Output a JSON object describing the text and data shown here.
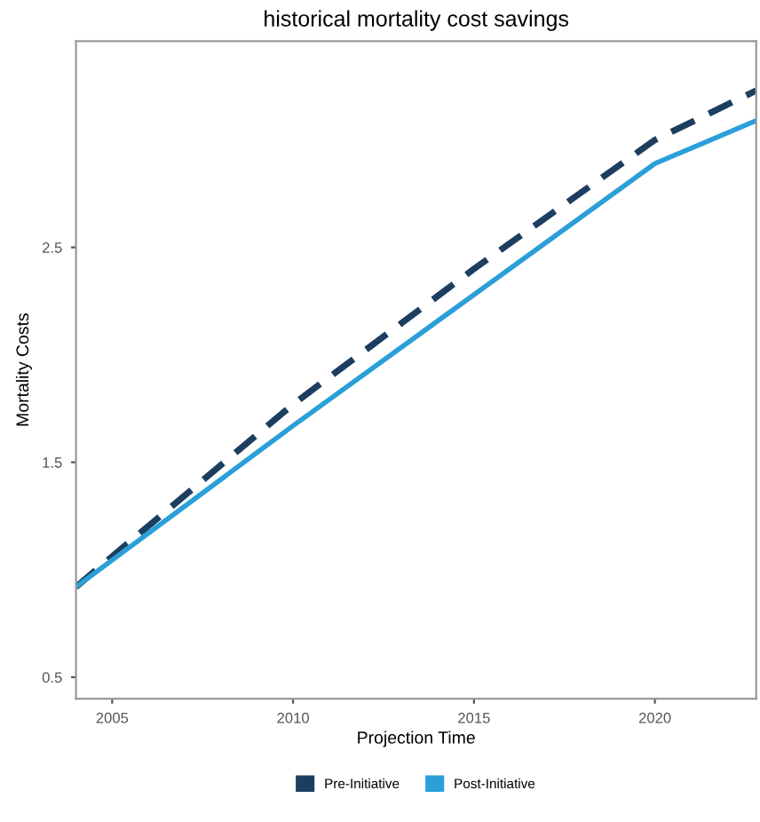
{
  "chart_data": {
    "type": "line",
    "title": "historical mortality cost savings",
    "xlabel": "Projection Time",
    "ylabel": "Mortality Costs",
    "xlim": [
      2004,
      2022.8
    ],
    "xticks": [
      2005,
      2010,
      2015,
      2020
    ],
    "ylim": [
      0.4,
      3.46
    ],
    "yticks": [
      0.5,
      1.5,
      2.5
    ],
    "grid": false,
    "legend": "bottom",
    "series": [
      {
        "name": "Pre-Initiative",
        "color": "#1c3f60",
        "line_style": "dashed",
        "x": [
          2004,
          2010,
          2015,
          2020,
          2022.8
        ],
        "values": [
          0.92,
          1.77,
          2.4,
          3.0,
          3.23
        ]
      },
      {
        "name": "Post-Initiative",
        "color": "#2a9fd8",
        "line_style": "solid",
        "x": [
          2004,
          2010,
          2015,
          2020,
          2022.8
        ],
        "values": [
          0.92,
          1.67,
          2.28,
          2.89,
          3.09
        ]
      }
    ]
  }
}
